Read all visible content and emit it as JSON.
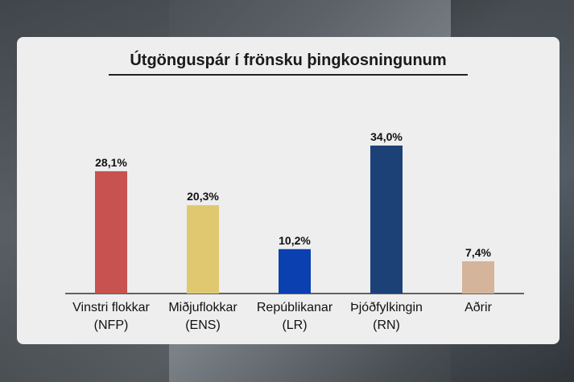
{
  "chart_data": {
    "type": "bar",
    "title": "Útgönguspár í frönsku þingkosningunum",
    "categories": [
      [
        "Vinstri flokkar",
        "(NFP)"
      ],
      [
        "Miðjuflokkar",
        "(ENS)"
      ],
      [
        "Repúblikanar",
        "(LR)"
      ],
      [
        "Þjóðfylkingin",
        "(RN)"
      ],
      [
        "Aðrir",
        ""
      ]
    ],
    "values": [
      28.1,
      20.3,
      10.2,
      34.0,
      7.4
    ],
    "value_labels": [
      "28,1%",
      "20,3%",
      "10,2%",
      "34,0%",
      "7,4%"
    ],
    "colors": [
      "#c8524f",
      "#e0c870",
      "#0a40b0",
      "#1c4176",
      "#d4b49a"
    ],
    "ylim": [
      0,
      34.0
    ],
    "grid": false,
    "legend": "none"
  }
}
